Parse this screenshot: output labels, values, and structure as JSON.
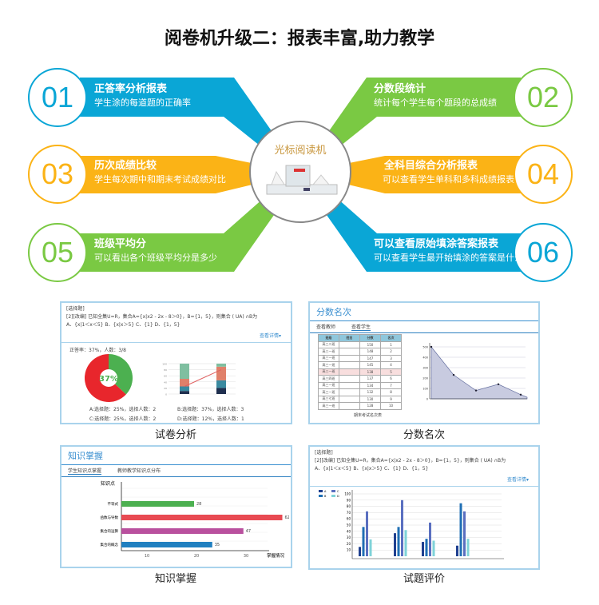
{
  "title": "阅卷机升级二：报表丰富,助力教学",
  "center": {
    "label": "光标阅读机",
    "icon": "omr-reader-machine"
  },
  "colors": {
    "blue": "#0aa6d6",
    "green": "#7ac943",
    "orange": "#fbb316"
  },
  "features": [
    {
      "num": "01",
      "title": "正答率分析报表",
      "sub": "学生涂的每道题的正确率",
      "color": "#0aa6d6"
    },
    {
      "num": "02",
      "title": "分数段统计",
      "sub": "统计每个学生每个题段的总成绩",
      "color": "#7ac943"
    },
    {
      "num": "03",
      "title": "历次成绩比较",
      "sub": "学生每次期中和期末考试成绩对比",
      "color": "#fbb316"
    },
    {
      "num": "04",
      "title": "全科目综合分析报表",
      "sub": "可以查看学生单科和多科成绩报表",
      "color": "#fbb316"
    },
    {
      "num": "05",
      "title": "班级平均分",
      "sub": "可以看出各个班级平均分是多少",
      "color": "#7ac943"
    },
    {
      "num": "06",
      "title": "可以查看原始填涂答案报表",
      "sub": "可以查看学生最开始填涂的答案是什么",
      "color": "#0aa6d6"
    }
  ],
  "panels": {
    "paper": {
      "caption": "试卷分析",
      "qtype": "[选择题]",
      "question": "[2][改编] 已知全集U=R，集合A={x|x2 - 2x - 8＞0}，B={1，5}，则集合 (    UA) ∩B为",
      "options": "A、{x|1＜x＜5}     B、{x|x＞5}     C、{1}     D、{1，5}",
      "more": "查看详情▾",
      "accuracy": "正答率：37%，人数：3/8",
      "stats": [
        "A:选择题：25%，选择人数：2",
        "B:选择题：37%，选择人数：3",
        "C:选择题：25%，选择人数：2",
        "D:选择题：12%，选择人数：1"
      ]
    },
    "rank": {
      "caption": "分数名次",
      "title": "分数名次",
      "tabs": [
        "查看教师",
        "查看学生"
      ],
      "table_caption": "期末考试名次表",
      "headers": [
        "班级",
        "姓名",
        "分数",
        "名次"
      ],
      "rows": [
        [
          "高三二班",
          "",
          "150",
          "1"
        ],
        [
          "高三一班",
          "",
          "148",
          "2"
        ],
        [
          "高三一班",
          "",
          "147",
          "3"
        ],
        [
          "高三一班",
          "",
          "145",
          "4"
        ],
        [
          "高三一班",
          "",
          "138",
          "5"
        ],
        [
          "高三四班",
          "",
          "137",
          "6"
        ],
        [
          "高三一班",
          "",
          "134",
          "7"
        ],
        [
          "高三一班",
          "",
          "132",
          "8"
        ],
        [
          "高三七班",
          "",
          "130",
          "9"
        ],
        [
          "高三一班",
          "",
          "128",
          "10"
        ]
      ]
    },
    "knowledge": {
      "caption": "知识掌握",
      "title": "知识掌握",
      "tabs": [
        "学生知识点掌握",
        "教师教学知识点分布"
      ]
    },
    "eval": {
      "caption": "试题评价",
      "qtype": "[选择题]",
      "question": "[2][改编] 已知全集U=R，集合A={x|x2 - 2x - 8＞0}，B={1，5}，则集合 (    UA) ∩B为",
      "options": "A、{x|1＜x＜5}     B、{x|x＞5}     C、{1}     D、{1，5}",
      "more": "查看详情▾"
    }
  },
  "chart_data": [
    {
      "type": "pie",
      "values": [
        37,
        63
      ],
      "colors": [
        "#4cb050",
        "#e8262c"
      ],
      "label": "37%"
    },
    {
      "type": "bar",
      "stacked": true,
      "categories": 2,
      "ylim": [
        0,
        100
      ],
      "yticks": [
        0,
        20,
        40,
        60,
        80,
        100
      ],
      "line_color": "#e06060"
    },
    {
      "type": "area",
      "values": [
        500,
        230,
        80,
        140,
        40
      ],
      "ylim": [
        0,
        500
      ],
      "yticks": [
        0,
        100,
        200,
        300,
        400,
        500
      ]
    },
    {
      "type": "bar",
      "orientation": "horizontal",
      "categories": [
        "不等式",
        "函数与导数",
        "集合的运算",
        "集合的概念"
      ],
      "values": [
        28,
        62,
        47,
        35
      ],
      "colors": [
        "#4cb050",
        "#e84a52",
        "#b9509e",
        "#1f7fc0"
      ],
      "xticks": [
        10,
        20,
        30,
        40,
        50,
        60,
        70
      ],
      "xlabel": "掌握情况",
      "ylabel": "知识点"
    },
    {
      "type": "bar",
      "ylim": [
        0,
        100
      ],
      "yticks": [
        10,
        20,
        30,
        40,
        50,
        60,
        70,
        80,
        90,
        100
      ],
      "legend": [
        "A",
        "B",
        "C",
        "D"
      ],
      "colors": [
        "#1f3f8f",
        "#1f6fb4",
        "#5a6fc0",
        "#7fd3d8"
      ],
      "series": [
        [
          15,
          37,
          23,
          17
        ],
        [
          47,
          47,
          28,
          85
        ],
        [
          72,
          90,
          54,
          72
        ],
        [
          27,
          42,
          25,
          28
        ]
      ]
    }
  ]
}
